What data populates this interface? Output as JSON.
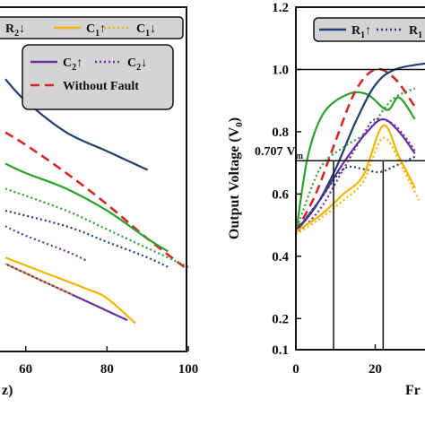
{
  "colors": {
    "R1": "#1f3f6e",
    "R2": "#1f3f6e",
    "C1": "#f2b600",
    "C2": "#6a2fa0",
    "green": "#2ca02c",
    "fault": "#d62728"
  },
  "chart_data": [
    {
      "type": "line",
      "panel": "left",
      "xlabel_visible": "z)",
      "xticks": [
        60,
        80,
        100
      ],
      "xlim": [
        55,
        100
      ],
      "ylim": [
        0.1,
        1.2
      ],
      "legend": [
        {
          "label": "R",
          "sub": "2",
          "arrow": "↓",
          "style": "dotted",
          "color": "R2"
        },
        {
          "label": "C",
          "sub": "1",
          "arrow": "↑",
          "style": "solid",
          "color": "C1"
        },
        {
          "label": "C",
          "sub": "1",
          "arrow": "↓",
          "style": "dotted",
          "color": "C1"
        },
        {
          "label": "C",
          "sub": "2",
          "arrow": "↑",
          "style": "solid",
          "color": "C2"
        },
        {
          "label": "C",
          "sub": "2",
          "arrow": "↓",
          "style": "dotted",
          "color": "C2"
        },
        {
          "label": "Without Fault",
          "sub": "",
          "arrow": "",
          "style": "dashed",
          "color": "fault"
        }
      ],
      "series": [
        {
          "color": "R1",
          "dash": "solid",
          "points": [
            [
              55,
              0.97
            ],
            [
              60,
              0.9
            ],
            [
              70,
              0.8
            ],
            [
              80,
              0.74
            ],
            [
              90,
              0.68
            ]
          ]
        },
        {
          "color": "fault",
          "dash": "dashed",
          "points": [
            [
              55,
              0.8
            ],
            [
              60,
              0.76
            ],
            [
              70,
              0.67
            ],
            [
              80,
              0.57
            ],
            [
              90,
              0.46
            ],
            [
              100,
              0.36
            ]
          ]
        },
        {
          "color": "green",
          "dash": "solid",
          "points": [
            [
              55,
              0.7
            ],
            [
              60,
              0.67
            ],
            [
              70,
              0.62
            ],
            [
              80,
              0.55
            ],
            [
              90,
              0.46
            ],
            [
              95,
              0.42
            ]
          ]
        },
        {
          "color": "green",
          "dash": "dotted",
          "points": [
            [
              55,
              0.62
            ],
            [
              70,
              0.55
            ],
            [
              80,
              0.49
            ],
            [
              90,
              0.43
            ],
            [
              100,
              0.37
            ]
          ]
        },
        {
          "color": "R2",
          "dash": "dotted",
          "points": [
            [
              55,
              0.55
            ],
            [
              70,
              0.5
            ],
            [
              80,
              0.45
            ],
            [
              90,
              0.4
            ],
            [
              95,
              0.37
            ]
          ]
        },
        {
          "color": "C2",
          "dash": "dotted",
          "points": [
            [
              55,
              0.5
            ],
            [
              60,
              0.47
            ],
            [
              70,
              0.42
            ],
            [
              75,
              0.39
            ]
          ]
        },
        {
          "color": "C2",
          "dash": "solid",
          "points": [
            [
              55,
              0.38
            ],
            [
              65,
              0.32
            ],
            [
              75,
              0.26
            ],
            [
              85,
              0.2
            ]
          ]
        },
        {
          "color": "C1",
          "dash": "solid",
          "points": [
            [
              55,
              0.4
            ],
            [
              65,
              0.35
            ],
            [
              75,
              0.3
            ],
            [
              80,
              0.27
            ],
            [
              87,
              0.19
            ]
          ]
        },
        {
          "color": "C1",
          "dash": "dotted",
          "points": [
            [
              55,
              0.38
            ],
            [
              65,
              0.32
            ],
            [
              72,
              0.28
            ]
          ]
        }
      ]
    },
    {
      "type": "line",
      "panel": "right",
      "ylabel": "Output Voltage (V",
      "ylabel_sub": "0",
      "ylabel_tail": ")",
      "xlabel_visible": "Fr",
      "xticks": [
        0,
        20
      ],
      "yticks": [
        0.1,
        0.2,
        0.4,
        0.6,
        0.8,
        1.0,
        1.2
      ],
      "ylim": [
        0.1,
        1.2
      ],
      "xlim": [
        0,
        33
      ],
      "annotation": {
        "value": "0.707",
        "label": "V",
        "sub": "m"
      },
      "reference_lines": {
        "h": [
          1.0,
          0.707
        ],
        "v": [
          9.5,
          22
        ]
      },
      "legend": [
        {
          "label": "R",
          "sub": "1",
          "arrow": "↑",
          "style": "solid",
          "color": "R1"
        },
        {
          "label": "R",
          "sub": "1",
          "arrow": "",
          "style": "dotted",
          "color": "R1"
        }
      ],
      "series": [
        {
          "color": "green",
          "dash": "solid",
          "points": [
            [
              0,
              0.47
            ],
            [
              3,
              0.72
            ],
            [
              7,
              0.86
            ],
            [
              13,
              0.92
            ],
            [
              18,
              0.92
            ],
            [
              23,
              0.87
            ],
            [
              26,
              0.91
            ],
            [
              30,
              0.84
            ]
          ]
        },
        {
          "color": "fault",
          "dash": "dashed",
          "points": [
            [
              0,
              0.48
            ],
            [
              5,
              0.6
            ],
            [
              10,
              0.77
            ],
            [
              15,
              0.93
            ],
            [
              20,
              1.0
            ],
            [
              25,
              0.97
            ],
            [
              30,
              0.88
            ]
          ]
        },
        {
          "color": "R1",
          "dash": "solid",
          "points": [
            [
              0,
              0.48
            ],
            [
              5,
              0.56
            ],
            [
              10,
              0.68
            ],
            [
              15,
              0.83
            ],
            [
              20,
              0.95
            ],
            [
              25,
              1.0
            ],
            [
              33,
              1.02
            ]
          ]
        },
        {
          "color": "green",
          "dash": "dotted",
          "points": [
            [
              0,
              0.48
            ],
            [
              6,
              0.68
            ],
            [
              12,
              0.75
            ],
            [
              18,
              0.8
            ],
            [
              24,
              0.9
            ],
            [
              30,
              0.94
            ]
          ]
        },
        {
          "color": "C2",
          "dash": "solid",
          "points": [
            [
              0,
              0.48
            ],
            [
              6,
              0.58
            ],
            [
              12,
              0.7
            ],
            [
              18,
              0.8
            ],
            [
              22,
              0.84
            ],
            [
              26,
              0.8
            ],
            [
              30,
              0.73
            ]
          ]
        },
        {
          "color": "C2",
          "dash": "dotted",
          "points": [
            [
              0,
              0.47
            ],
            [
              6,
              0.55
            ],
            [
              12,
              0.68
            ],
            [
              17,
              0.79
            ],
            [
              20,
              0.84
            ],
            [
              25,
              0.82
            ],
            [
              30,
              0.74
            ]
          ]
        },
        {
          "color": "R2",
          "dash": "dotted",
          "points": [
            [
              0,
              0.48
            ],
            [
              6,
              0.58
            ],
            [
              12,
              0.68
            ],
            [
              17,
              0.68
            ],
            [
              21,
              0.67
            ],
            [
              25,
              0.69
            ],
            [
              30,
              0.72
            ]
          ]
        },
        {
          "color": "C1",
          "dash": "solid",
          "points": [
            [
              0,
              0.48
            ],
            [
              6,
              0.53
            ],
            [
              12,
              0.6
            ],
            [
              17,
              0.66
            ],
            [
              22,
              0.82
            ],
            [
              26,
              0.72
            ],
            [
              30,
              0.62
            ]
          ]
        },
        {
          "color": "C1",
          "dash": "dotted",
          "points": [
            [
              0,
              0.47
            ],
            [
              6,
              0.52
            ],
            [
              12,
              0.58
            ],
            [
              17,
              0.64
            ],
            [
              22,
              0.78
            ],
            [
              27,
              0.68
            ],
            [
              31,
              0.58
            ]
          ]
        }
      ]
    }
  ]
}
